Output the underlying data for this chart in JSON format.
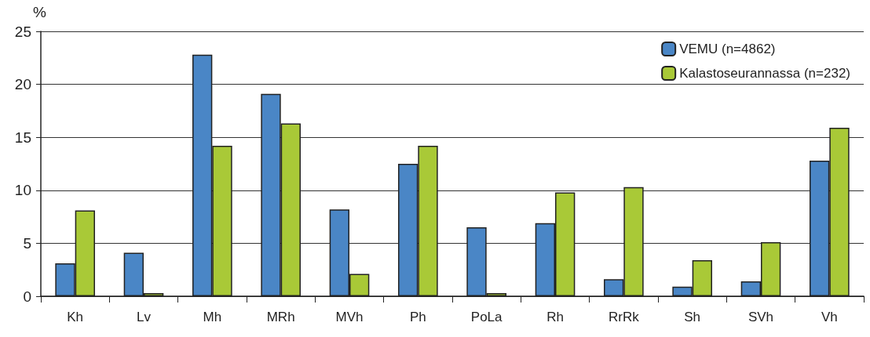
{
  "chart_data": {
    "type": "bar",
    "ylabel": "%",
    "categories": [
      "Kh",
      "Lv",
      "Mh",
      "MRh",
      "MVh",
      "Ph",
      "PoLa",
      "Rh",
      "RrRk",
      "Sh",
      "SVh",
      "Vh"
    ],
    "series": [
      {
        "name": "VEMU (n=4862)",
        "color": "#4a86c6",
        "values": [
          3.1,
          4.1,
          22.8,
          19.1,
          8.2,
          12.5,
          6.5,
          6.9,
          1.6,
          0.9,
          1.4,
          12.8
        ]
      },
      {
        "name": "Kalastoseurannassa (n=232)",
        "color": "#a9c937",
        "values": [
          8.1,
          0.3,
          14.2,
          16.3,
          2.1,
          14.2,
          0.3,
          9.8,
          10.3,
          3.4,
          5.1,
          15.9
        ]
      }
    ],
    "ylim": [
      0,
      25
    ],
    "yticks": [
      0,
      5,
      10,
      15,
      20,
      25
    ],
    "grid": "y",
    "legend": "top right"
  }
}
